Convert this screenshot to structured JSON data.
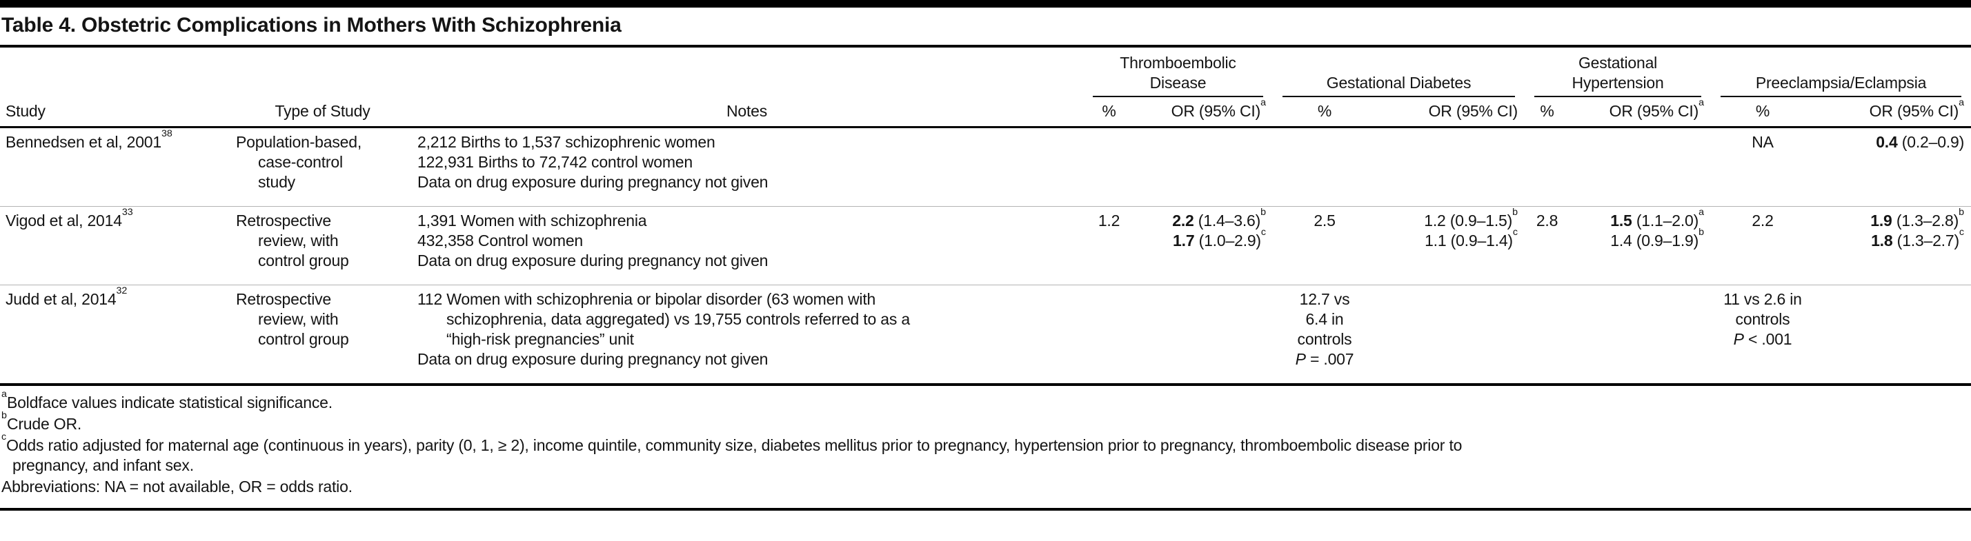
{
  "table": {
    "title": "Table 4. Obstetric Complications in Mothers With Schizophrenia",
    "columns": {
      "study": "Study",
      "type": "Type of Study",
      "notes": "Notes",
      "groups": [
        {
          "label": "Thromboembolic\nDisease",
          "pct": "%",
          "or": "OR (95% CI)",
          "or_sup": "a"
        },
        {
          "label": "Gestational Diabetes",
          "pct": "%",
          "or": "OR (95% CI)",
          "or_sup": ""
        },
        {
          "label": "Gestational\nHypertension",
          "pct": "%",
          "or": "OR (95% CI)",
          "or_sup": "a"
        },
        {
          "label": "Preeclampsia/Eclampsia",
          "pct": "%",
          "or": "OR (95% CI)",
          "or_sup": "a"
        }
      ]
    },
    "rows": [
      {
        "study": "Bennedsen et al, 2001",
        "study_sup": "38",
        "type_lines": [
          "Population-based,",
          "case-control",
          "study"
        ],
        "notes_lines": [
          {
            "text": "2,212 Births to 1,537 schizophrenic women",
            "indent": false
          },
          {
            "text": "122,931 Births to 72,742 control women",
            "indent": false
          },
          {
            "text": "Data on drug exposure during pregnancy not given",
            "indent": false
          }
        ],
        "cells": {
          "t_pct": [],
          "t_or": [],
          "gd_pct": [],
          "gd_or": [],
          "gh_pct": [],
          "gh_or": [],
          "pe_pct": [
            [
              {
                "t": "NA",
                "s": "n"
              }
            ]
          ],
          "pe_or": [
            [
              {
                "t": "0.4",
                "s": "b"
              },
              {
                "t": " (0.2–0.9)",
                "s": "n"
              }
            ]
          ]
        }
      },
      {
        "study": "Vigod et al, 2014",
        "study_sup": "33",
        "type_lines": [
          "Retrospective",
          "review, with",
          "control group"
        ],
        "notes_lines": [
          {
            "text": "1,391 Women with schizophrenia",
            "indent": false
          },
          {
            "text": "432,358 Control women",
            "indent": false
          },
          {
            "text": "Data on drug exposure during pregnancy not given",
            "indent": false
          }
        ],
        "cells": {
          "t_pct": [
            [
              {
                "t": "1.2",
                "s": "n"
              }
            ]
          ],
          "t_or": [
            [
              {
                "t": "2.2",
                "s": "b"
              },
              {
                "t": " (1.4–3.6)",
                "s": "n"
              },
              {
                "t": "b",
                "s": "sup"
              }
            ],
            [
              {
                "t": "1.7",
                "s": "b"
              },
              {
                "t": " (1.0–2.9)",
                "s": "n"
              },
              {
                "t": "c",
                "s": "sup"
              }
            ]
          ],
          "gd_pct": [
            [
              {
                "t": "2.5",
                "s": "n"
              }
            ]
          ],
          "gd_or": [
            [
              {
                "t": "1.2 (0.9–1.5)",
                "s": "n"
              },
              {
                "t": "b",
                "s": "sup"
              }
            ],
            [
              {
                "t": "1.1 (0.9–1.4)",
                "s": "n"
              },
              {
                "t": "c",
                "s": "sup"
              }
            ]
          ],
          "gh_pct": [
            [
              {
                "t": "2.8",
                "s": "n"
              }
            ]
          ],
          "gh_or": [
            [
              {
                "t": "1.5",
                "s": "b"
              },
              {
                "t": " (1.1–2.0)",
                "s": "n"
              },
              {
                "t": "a",
                "s": "sup"
              }
            ],
            [
              {
                "t": "1.4 (0.9–1.9)",
                "s": "n"
              },
              {
                "t": "b",
                "s": "sup"
              }
            ]
          ],
          "pe_pct": [
            [
              {
                "t": "2.2",
                "s": "n"
              }
            ]
          ],
          "pe_or": [
            [
              {
                "t": "1.9",
                "s": "b"
              },
              {
                "t": " (1.3–2.8)",
                "s": "n"
              },
              {
                "t": "b",
                "s": "sup"
              }
            ],
            [
              {
                "t": "1.8",
                "s": "b"
              },
              {
                "t": " (1.3–2.7)",
                "s": "n"
              },
              {
                "t": "c",
                "s": "sup"
              }
            ]
          ]
        }
      },
      {
        "study": "Judd et al, 2014",
        "study_sup": "32",
        "type_lines": [
          "Retrospective",
          "review, with",
          "control group"
        ],
        "notes_lines": [
          {
            "text": "112 Women with schizophrenia or bipolar disorder (63 women with",
            "indent": false
          },
          {
            "text": "schizophrenia, data aggregated) vs 19,755 controls referred to as a",
            "indent": true
          },
          {
            "text": "“high-risk pregnancies” unit",
            "indent": true
          },
          {
            "text": "Data on drug exposure during pregnancy not given",
            "indent": false
          }
        ],
        "cells": {
          "t_pct": [],
          "t_or": [],
          "gd_pct": [
            [
              {
                "t": "12.7 vs",
                "s": "n"
              }
            ],
            [
              {
                "t": "6.4 in",
                "s": "n"
              }
            ],
            [
              {
                "t": "controls",
                "s": "n"
              }
            ],
            [
              {
                "t": "P",
                "s": "i"
              },
              {
                "t": " = .007",
                "s": "n"
              }
            ]
          ],
          "gd_or": [],
          "gh_pct": [],
          "gh_or": [],
          "pe_pct": [
            [
              {
                "t": "11 vs 2.6 in",
                "s": "n"
              }
            ],
            [
              {
                "t": "controls",
                "s": "n"
              }
            ],
            [
              {
                "t": "P",
                "s": "i"
              },
              {
                "t": " < .001",
                "s": "n"
              }
            ]
          ],
          "pe_or": []
        }
      }
    ],
    "footnotes": [
      {
        "marker": "a",
        "lines": [
          "Boldface values indicate statistical significance."
        ]
      },
      {
        "marker": "b",
        "lines": [
          "Crude OR."
        ]
      },
      {
        "marker": "c",
        "lines": [
          "Odds ratio adjusted for maternal age (continuous in years), parity (0, 1, ≥ 2), income quintile, community size, diabetes mellitus prior to pregnancy, hypertension prior to pregnancy, thromboembolic disease prior to",
          "pregnancy, and infant sex."
        ]
      },
      {
        "marker": "",
        "lines": [
          "Abbreviations: NA = not available, OR = odds ratio."
        ]
      }
    ],
    "colors": {
      "text": "#141414",
      "rule": "#000000",
      "row_divider": "#b3b3b3",
      "background": "#ffffff"
    }
  }
}
